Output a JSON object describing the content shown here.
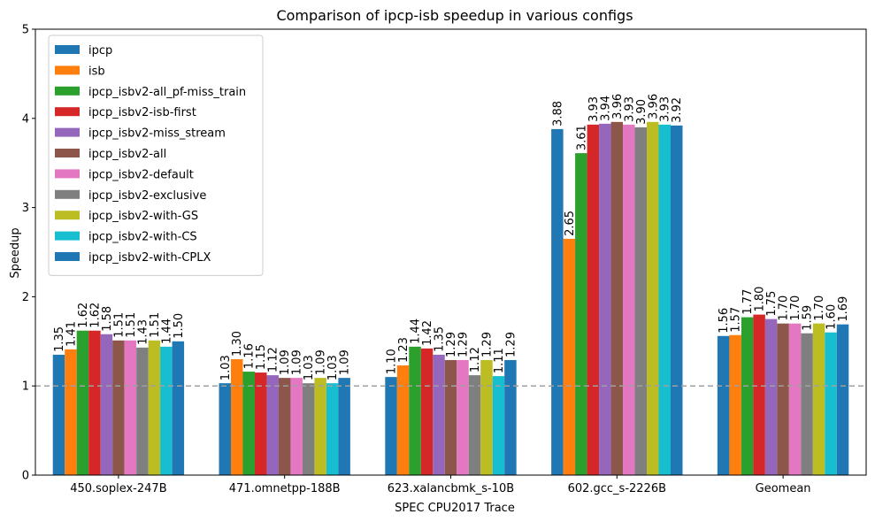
{
  "chart_data": {
    "type": "bar",
    "title": "Comparison of ipcp-isb speedup in various configs",
    "xlabel": "SPEC CPU2017 Trace",
    "ylabel": "Speedup",
    "ylim": [
      0,
      5
    ],
    "yticks": [
      "0",
      "1",
      "2",
      "3",
      "4",
      "5"
    ],
    "grid": false,
    "legend_position": "top-left",
    "reference_line": {
      "y": 1,
      "style": "dashed",
      "color": "#a0a0a0"
    },
    "categories": [
      "450.soplex-247B",
      "471.omnetpp-188B",
      "623.xalancbmk_s-10B",
      "602.gcc_s-2226B",
      "Geomean"
    ],
    "series": [
      {
        "name": "ipcp",
        "color": "#1f77b4",
        "values": [
          1.35,
          1.03,
          1.1,
          3.88,
          1.56
        ]
      },
      {
        "name": "isb",
        "color": "#ff7f0e",
        "values": [
          1.41,
          1.3,
          1.23,
          2.65,
          1.57
        ]
      },
      {
        "name": "ipcp_isbv2-all_pf-miss_train",
        "color": "#2ca02c",
        "values": [
          1.62,
          1.16,
          1.44,
          3.61,
          1.77
        ]
      },
      {
        "name": "ipcp_isbv2-isb-first",
        "color": "#d62728",
        "values": [
          1.62,
          1.15,
          1.42,
          3.93,
          1.8
        ]
      },
      {
        "name": "ipcp_isbv2-miss_stream",
        "color": "#9467bd",
        "values": [
          1.58,
          1.12,
          1.35,
          3.94,
          1.75
        ]
      },
      {
        "name": "ipcp_isbv2-all",
        "color": "#8c564b",
        "values": [
          1.51,
          1.09,
          1.29,
          3.96,
          1.7
        ]
      },
      {
        "name": "ipcp_isbv2-default",
        "color": "#e377c2",
        "values": [
          1.51,
          1.09,
          1.29,
          3.93,
          1.7
        ]
      },
      {
        "name": "ipcp_isbv2-exclusive",
        "color": "#7f7f7f",
        "values": [
          1.43,
          1.03,
          1.12,
          3.9,
          1.59
        ]
      },
      {
        "name": "ipcp_isbv2-with-GS",
        "color": "#bcbd22",
        "values": [
          1.51,
          1.09,
          1.29,
          3.96,
          1.7
        ]
      },
      {
        "name": "ipcp_isbv2-with-CS",
        "color": "#17becf",
        "values": [
          1.44,
          1.03,
          1.11,
          3.93,
          1.6
        ]
      },
      {
        "name": "ipcp_isbv2-with-CPLX",
        "color": "#1f77b4",
        "values": [
          1.5,
          1.09,
          1.29,
          3.92,
          1.69
        ]
      }
    ]
  }
}
